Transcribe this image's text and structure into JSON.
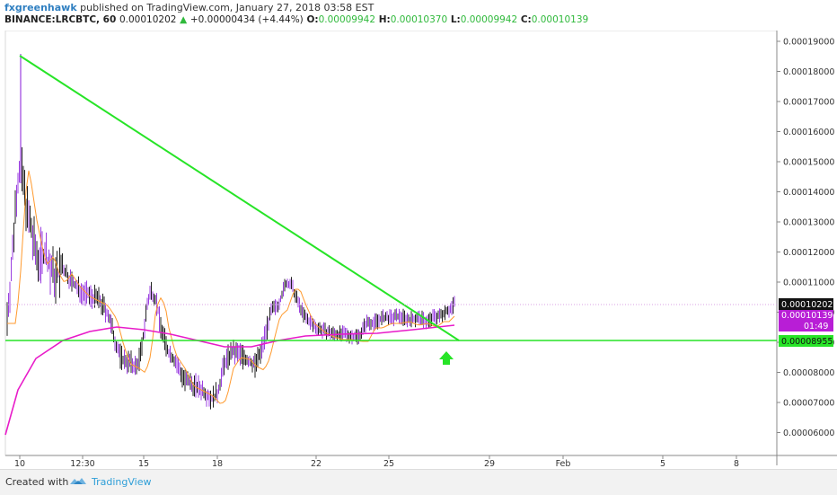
{
  "header": {
    "author": "fxgreenhawk",
    "published_text": "published on TradingView.com, January 27, 2018 03:58 EST",
    "symbol": "BINANCE:LRCBTC, 60",
    "last_price": "0.00010202",
    "change_arrow": "▲",
    "change": "+0.00000434 (+4.44%)",
    "o_label": "O:",
    "o_value": "0.00009942",
    "h_label": "H:",
    "h_value": "0.00010370",
    "l_label": "L:",
    "l_value": "0.00009942",
    "c_label": "C:",
    "c_value": "0.00010139"
  },
  "axis": {
    "y_ticks": [
      "0.00019000",
      "0.00018000",
      "0.00017000",
      "0.00016000",
      "0.00015000",
      "0.00014000",
      "0.00013000",
      "0.00012000",
      "0.00011000",
      "0.00010000",
      "0.00009000",
      "0.00008000",
      "0.00007000",
      "0.00006000"
    ],
    "x_ticks": [
      "10",
      "12:30",
      "15",
      "18",
      "22",
      "25",
      "29",
      "Feb",
      "5",
      "8"
    ]
  },
  "price_labels": {
    "last": "0.00010202",
    "close": "0.00010139",
    "countdown": "01:49",
    "support": "0.00008955"
  },
  "colors": {
    "candle": "#9b3fe0",
    "trendline": "#27e427",
    "ma_fast": "#ff9a2e",
    "ma_slow": "#e81bc9",
    "ma_mid": "#6d4ad6",
    "signal_arrow": "#27e427"
  },
  "footer": {
    "created_with": "Created with",
    "brand": "TradingView"
  }
}
